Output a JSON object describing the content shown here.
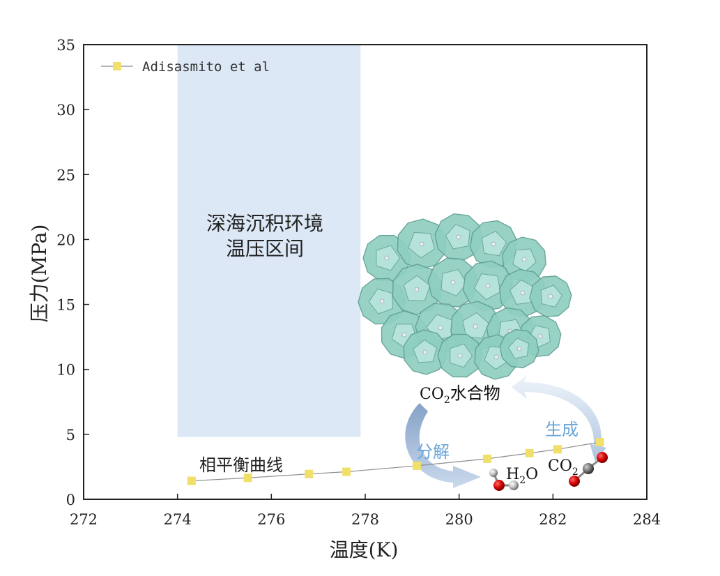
{
  "chart_data": {
    "type": "line",
    "xlabel": "温度(K)",
    "ylabel": "压力(MPa)",
    "xlim": [
      272,
      284
    ],
    "ylim": [
      0,
      35
    ],
    "xticks": [
      "272",
      "274",
      "276",
      "278",
      "280",
      "282",
      "284"
    ],
    "yticks": [
      "0",
      "5",
      "10",
      "15",
      "20",
      "25",
      "30",
      "35"
    ],
    "series": [
      {
        "name": "Adisasmito et al",
        "color": "#f0e06a",
        "line_color": "#8c8c8c",
        "marker": "square",
        "x": [
          274.3,
          275.5,
          276.8,
          277.6,
          279.1,
          280.6,
          281.5,
          282.1,
          283.0
        ],
        "y": [
          1.42,
          1.65,
          1.95,
          2.12,
          2.58,
          3.12,
          3.55,
          3.85,
          4.4
        ]
      }
    ],
    "shaded_region": {
      "x": [
        274.0,
        277.9
      ],
      "y": [
        4.8,
        35
      ],
      "color": "#dce8f5"
    },
    "region_label": [
      "深海沉积环境",
      "温压区间"
    ],
    "curve_label": "相平衡曲线",
    "legend": "top-left",
    "grid": false
  },
  "annotations": {
    "hydrate": {
      "formula": "CO",
      "sub": "2",
      "suffix": "水合物"
    },
    "formation": "生成",
    "decomposition": "分解",
    "water": {
      "formula": "H",
      "sub": "2",
      "suffix": "O"
    },
    "co2": {
      "formula": "CO",
      "sub": "2"
    }
  }
}
